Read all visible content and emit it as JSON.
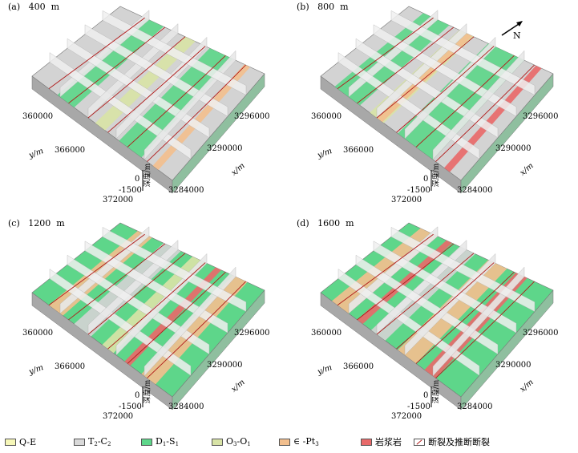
{
  "panels": [
    {
      "title": "(a)   400  m",
      "y_ticks": [
        "360000",
        "366000",
        "372000"
      ],
      "x_ticks": [
        "3296000",
        "3290000",
        "3284000"
      ],
      "y_label": "y/m",
      "x_label": "x/m",
      "depth_ticks": [
        "0",
        "-1500"
      ],
      "depth_label": "深度/m"
    },
    {
      "title": "(b)   800  m",
      "y_ticks": [
        "360000",
        "366000",
        "372000"
      ],
      "x_ticks": [
        "3296000",
        "3290000",
        "3284000"
      ],
      "y_label": "y/m",
      "x_label": "x/m",
      "depth_ticks": [
        "0",
        "-1500"
      ],
      "depth_label": "深度/m"
    },
    {
      "title": "(c)   1200  m",
      "y_ticks": [
        "360000",
        "366000",
        "372000"
      ],
      "x_ticks": [
        "3296000",
        "3290000",
        "3284000"
      ],
      "y_label": "y/m",
      "x_label": "x/m",
      "depth_ticks": [
        "0",
        "-1500"
      ],
      "depth_label": "深度/m"
    },
    {
      "title": "(d)   1600  m",
      "y_ticks": [
        "360000",
        "366000",
        "372000"
      ],
      "x_ticks": [
        "3296000",
        "3290000",
        "3284000"
      ],
      "y_label": "y/m",
      "x_label": "x/m",
      "depth_ticks": [
        "0",
        "-1500"
      ],
      "depth_label": "深度/m"
    }
  ],
  "north_label": "N",
  "legend": [
    {
      "label": "Q-E",
      "color": "#f6f7b8"
    },
    {
      "label": "T2-C2",
      "base": "T",
      "s1": "2",
      "mid": "-C",
      "s2": "2",
      "color": "#d9d9d9"
    },
    {
      "label": "D1-S1",
      "base": "D",
      "s1": "1",
      "mid": "-S",
      "s2": "1",
      "color": "#5ed68a"
    },
    {
      "label": "O3-O1",
      "base": "O",
      "s1": "3",
      "mid": "-O",
      "s2": "1",
      "color": "#d8e3a6"
    },
    {
      "label": "∈-Pt3",
      "base": "∈ -Pt",
      "s1": "",
      "mid": "",
      "s2": "3",
      "color": "#f2bf8e"
    },
    {
      "label": "岩浆岩",
      "color": "#e86a6a"
    },
    {
      "label": "断裂及推断断裂",
      "color": "#ffffff"
    }
  ]
}
